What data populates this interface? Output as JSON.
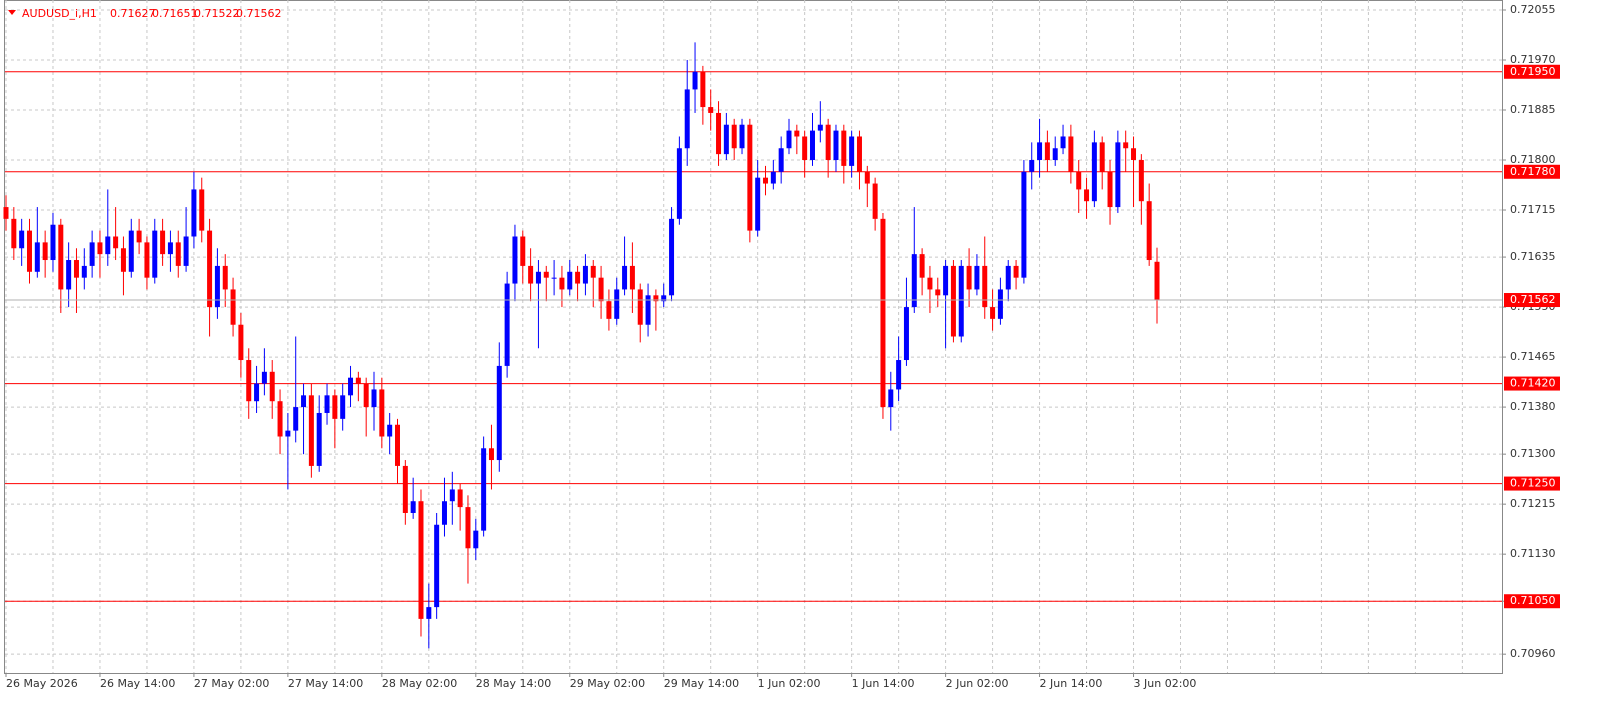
{
  "chart_data": {
    "type": "candlestick",
    "title": "AUDUSD_i,H1",
    "up_color": "#0000ff",
    "down_color": "#ff0000",
    "level_color": "#ff0000",
    "ylim": [
      0.70928,
      0.72072
    ],
    "yticks": [
      0.72055,
      {
        "value": 0.7197,
        "label": "0.71970"
      },
      0.71885,
      {
        "value": 0.718,
        "label": "0.71800"
      },
      0.71715,
      0.71635,
      {
        "value": 0.7155,
        "label": "0.71550"
      },
      0.71465,
      {
        "value": 0.7138,
        "label": "0.71380"
      },
      {
        "value": 0.713,
        "label": "0.71300"
      },
      0.71215,
      {
        "value": 0.7113,
        "label": "0.71130"
      },
      {
        "value": 0.7105,
        "label": "0.71050"
      },
      {
        "value": 0.7096,
        "label": "0.70960"
      }
    ],
    "levels": [
      {
        "value": 0.7195,
        "label": "0.71950"
      },
      {
        "value": 0.7178,
        "label": "0.71780"
      },
      {
        "value": 0.7142,
        "label": "0.71420"
      },
      {
        "value": 0.7125,
        "label": "0.71250"
      },
      {
        "value": 0.7105,
        "label": "0.71050"
      }
    ],
    "grid": true,
    "categories": [
      "26 May 2026",
      null,
      null,
      null,
      null,
      null,
      null,
      null,
      null,
      null,
      null,
      null,
      "26 May 14:00",
      null,
      null,
      null,
      null,
      null,
      null,
      null,
      null,
      null,
      null,
      null,
      "27 May 02:00",
      null,
      null,
      null,
      null,
      null,
      null,
      null,
      null,
      null,
      null,
      null,
      "27 May 14:00",
      null,
      null,
      null,
      null,
      null,
      null,
      null,
      null,
      null,
      null,
      null,
      "28 May 02:00",
      null,
      null,
      null,
      null,
      null,
      null,
      null,
      null,
      null,
      null,
      null,
      "28 May 14:00",
      null,
      null,
      null,
      null,
      null,
      null,
      null,
      null,
      null,
      null,
      null,
      "29 May 02:00",
      null,
      null,
      null,
      null,
      null,
      null,
      null,
      null,
      null,
      null,
      null,
      "29 May 14:00",
      null,
      null,
      null,
      null,
      null,
      null,
      null,
      null,
      null,
      null,
      null,
      "1 Jun 02:00",
      null,
      null,
      null,
      null,
      null,
      null,
      null,
      null,
      null,
      null,
      null,
      "1 Jun 14:00",
      null,
      null,
      null,
      null,
      null,
      null,
      null,
      null,
      null,
      null,
      null,
      "2 Jun 02:00",
      null,
      null,
      null,
      null,
      null,
      null,
      null,
      null,
      null,
      null,
      null,
      "2 Jun 14:00",
      null,
      null,
      null,
      null,
      null,
      null,
      null,
      null,
      null,
      null,
      null,
      "3 Jun 02:00",
      null,
      null,
      null
    ],
    "candles": [
      [
        0.7172,
        0.7174,
        0.7168,
        0.717
      ],
      [
        0.717,
        0.7172,
        0.7163,
        0.7165
      ],
      [
        0.7165,
        0.717,
        0.7162,
        0.7168
      ],
      [
        0.7168,
        0.717,
        0.7159,
        0.7161
      ],
      [
        0.7161,
        0.7172,
        0.716,
        0.7166
      ],
      [
        0.7166,
        0.7168,
        0.716,
        0.7163
      ],
      [
        0.7163,
        0.7171,
        0.7161,
        0.7169
      ],
      [
        0.7169,
        0.717,
        0.7154,
        0.7158
      ],
      [
        0.7158,
        0.7166,
        0.7155,
        0.7163
      ],
      [
        0.7163,
        0.7165,
        0.7154,
        0.716
      ],
      [
        0.716,
        0.7165,
        0.7158,
        0.7162
      ],
      [
        0.7162,
        0.7168,
        0.716,
        0.7166
      ],
      [
        0.7166,
        0.7168,
        0.716,
        0.7164
      ],
      [
        0.7164,
        0.7175,
        0.7162,
        0.7167
      ],
      [
        0.7167,
        0.7172,
        0.7163,
        0.7165
      ],
      [
        0.7165,
        0.7167,
        0.7157,
        0.7161
      ],
      [
        0.7161,
        0.717,
        0.716,
        0.7168
      ],
      [
        0.7168,
        0.717,
        0.7164,
        0.7166
      ],
      [
        0.7166,
        0.7167,
        0.7158,
        0.716
      ],
      [
        0.716,
        0.717,
        0.7159,
        0.7168
      ],
      [
        0.7168,
        0.717,
        0.7162,
        0.7164
      ],
      [
        0.7164,
        0.7168,
        0.7161,
        0.7166
      ],
      [
        0.7166,
        0.7168,
        0.716,
        0.7162
      ],
      [
        0.7162,
        0.7172,
        0.7161,
        0.7167
      ],
      [
        0.7167,
        0.7178,
        0.7165,
        0.7175
      ],
      [
        0.7175,
        0.7177,
        0.7166,
        0.7168
      ],
      [
        0.7168,
        0.717,
        0.715,
        0.7155
      ],
      [
        0.7155,
        0.7165,
        0.7153,
        0.7162
      ],
      [
        0.7162,
        0.7164,
        0.7155,
        0.7158
      ],
      [
        0.7158,
        0.716,
        0.715,
        0.7152
      ],
      [
        0.7152,
        0.7154,
        0.7143,
        0.7146
      ],
      [
        0.7146,
        0.7148,
        0.7136,
        0.7139
      ],
      [
        0.7139,
        0.7145,
        0.7137,
        0.7142
      ],
      [
        0.7142,
        0.7148,
        0.714,
        0.7144
      ],
      [
        0.7144,
        0.7146,
        0.7136,
        0.7139
      ],
      [
        0.7139,
        0.7141,
        0.713,
        0.7133
      ],
      [
        0.7133,
        0.7137,
        0.7124,
        0.7134
      ],
      [
        0.7134,
        0.715,
        0.7132,
        0.7138
      ],
      [
        0.7138,
        0.7142,
        0.713,
        0.714
      ],
      [
        0.714,
        0.7142,
        0.7126,
        0.7128
      ],
      [
        0.7128,
        0.714,
        0.7127,
        0.7137
      ],
      [
        0.7137,
        0.7142,
        0.7135,
        0.714
      ],
      [
        0.714,
        0.7141,
        0.7131,
        0.7136
      ],
      [
        0.7136,
        0.7142,
        0.7134,
        0.714
      ],
      [
        0.714,
        0.7145,
        0.7138,
        0.7143
      ],
      [
        0.7143,
        0.7144,
        0.7139,
        0.7142
      ],
      [
        0.7142,
        0.7143,
        0.7133,
        0.7138
      ],
      [
        0.7138,
        0.7144,
        0.7134,
        0.7141
      ],
      [
        0.7141,
        0.7143,
        0.7131,
        0.7133
      ],
      [
        0.7133,
        0.7137,
        0.713,
        0.7135
      ],
      [
        0.7135,
        0.7136,
        0.7125,
        0.7128
      ],
      [
        0.7128,
        0.7129,
        0.7118,
        0.712
      ],
      [
        0.712,
        0.7126,
        0.7119,
        0.7122
      ],
      [
        0.7122,
        0.7124,
        0.7099,
        0.7102
      ],
      [
        0.7102,
        0.7108,
        0.7097,
        0.7104
      ],
      [
        0.7104,
        0.712,
        0.7102,
        0.7118
      ],
      [
        0.7118,
        0.7126,
        0.7116,
        0.7122
      ],
      [
        0.7122,
        0.7127,
        0.7118,
        0.7124
      ],
      [
        0.7124,
        0.7125,
        0.7117,
        0.7121
      ],
      [
        0.7121,
        0.7123,
        0.7108,
        0.7114
      ],
      [
        0.7114,
        0.7119,
        0.7112,
        0.7117
      ],
      [
        0.7117,
        0.7133,
        0.7116,
        0.7131
      ],
      [
        0.7131,
        0.7135,
        0.7124,
        0.7129
      ],
      [
        0.7129,
        0.7149,
        0.7127,
        0.7145
      ],
      [
        0.7145,
        0.7161,
        0.7143,
        0.7159
      ],
      [
        0.7159,
        0.7169,
        0.7156,
        0.7167
      ],
      [
        0.7167,
        0.7168,
        0.7159,
        0.7162
      ],
      [
        0.7162,
        0.7165,
        0.7156,
        0.7159
      ],
      [
        0.7159,
        0.7163,
        0.7148,
        0.7161
      ],
      [
        0.7161,
        0.7162,
        0.7156,
        0.716
      ],
      [
        0.716,
        0.7163,
        0.7157,
        0.716
      ],
      [
        0.716,
        0.7162,
        0.7155,
        0.7158
      ],
      [
        0.7158,
        0.7163,
        0.7157,
        0.7161
      ],
      [
        0.7161,
        0.7162,
        0.7156,
        0.7159
      ],
      [
        0.7159,
        0.7164,
        0.7157,
        0.7162
      ],
      [
        0.7162,
        0.7163,
        0.7155,
        0.716
      ],
      [
        0.716,
        0.7162,
        0.7153,
        0.7156
      ],
      [
        0.7156,
        0.7158,
        0.7151,
        0.7153
      ],
      [
        0.7153,
        0.716,
        0.7152,
        0.7158
      ],
      [
        0.7158,
        0.7167,
        0.7157,
        0.7162
      ],
      [
        0.7162,
        0.7166,
        0.7154,
        0.7158
      ],
      [
        0.7158,
        0.7159,
        0.7149,
        0.7152
      ],
      [
        0.7152,
        0.7159,
        0.715,
        0.7157
      ],
      [
        0.7157,
        0.7158,
        0.7151,
        0.7156
      ],
      [
        0.7156,
        0.7159,
        0.7155,
        0.7157
      ],
      [
        0.7157,
        0.7172,
        0.7156,
        0.717
      ],
      [
        0.717,
        0.7184,
        0.7169,
        0.7182
      ],
      [
        0.7182,
        0.7197,
        0.7179,
        0.7192
      ],
      [
        0.7192,
        0.72,
        0.7188,
        0.7195
      ],
      [
        0.7195,
        0.7196,
        0.7186,
        0.7189
      ],
      [
        0.7189,
        0.7192,
        0.7185,
        0.7188
      ],
      [
        0.7188,
        0.719,
        0.7179,
        0.7181
      ],
      [
        0.7181,
        0.7188,
        0.718,
        0.7186
      ],
      [
        0.7186,
        0.7187,
        0.718,
        0.7182
      ],
      [
        0.7182,
        0.7187,
        0.7181,
        0.7186
      ],
      [
        0.7186,
        0.7187,
        0.7166,
        0.7168
      ],
      [
        0.7168,
        0.718,
        0.7167,
        0.7177
      ],
      [
        0.7177,
        0.7179,
        0.7174,
        0.7176
      ],
      [
        0.7176,
        0.718,
        0.7175,
        0.7178
      ],
      [
        0.7178,
        0.7184,
        0.7176,
        0.7182
      ],
      [
        0.7182,
        0.7187,
        0.7181,
        0.7185
      ],
      [
        0.7185,
        0.7186,
        0.7181,
        0.7184
      ],
      [
        0.7184,
        0.7185,
        0.7177,
        0.718
      ],
      [
        0.718,
        0.7188,
        0.7179,
        0.7185
      ],
      [
        0.7185,
        0.719,
        0.7183,
        0.7186
      ],
      [
        0.7186,
        0.7187,
        0.7177,
        0.718
      ],
      [
        0.718,
        0.7186,
        0.7178,
        0.7185
      ],
      [
        0.7185,
        0.7186,
        0.7176,
        0.7179
      ],
      [
        0.7179,
        0.7185,
        0.7177,
        0.7184
      ],
      [
        0.7184,
        0.7185,
        0.7175,
        0.7178
      ],
      [
        0.7178,
        0.7179,
        0.7172,
        0.7176
      ],
      [
        0.7176,
        0.7177,
        0.7168,
        0.717
      ],
      [
        0.717,
        0.7171,
        0.7136,
        0.7138
      ],
      [
        0.7138,
        0.7144,
        0.7134,
        0.7141
      ],
      [
        0.7141,
        0.715,
        0.7139,
        0.7146
      ],
      [
        0.7146,
        0.716,
        0.7145,
        0.7155
      ],
      [
        0.7155,
        0.7172,
        0.7154,
        0.7164
      ],
      [
        0.7164,
        0.7165,
        0.7157,
        0.716
      ],
      [
        0.716,
        0.7162,
        0.7154,
        0.7158
      ],
      [
        0.7158,
        0.716,
        0.7155,
        0.7157
      ],
      [
        0.7157,
        0.7163,
        0.7148,
        0.7162
      ],
      [
        0.7162,
        0.7163,
        0.7149,
        0.715
      ],
      [
        0.715,
        0.7163,
        0.7149,
        0.7162
      ],
      [
        0.7162,
        0.7165,
        0.7155,
        0.7158
      ],
      [
        0.7158,
        0.7164,
        0.7157,
        0.7162
      ],
      [
        0.7162,
        0.7167,
        0.7153,
        0.7155
      ],
      [
        0.7155,
        0.7158,
        0.7151,
        0.7153
      ],
      [
        0.7153,
        0.716,
        0.7152,
        0.7158
      ],
      [
        0.7158,
        0.7163,
        0.7156,
        0.7162
      ],
      [
        0.7162,
        0.7163,
        0.7158,
        0.716
      ],
      [
        0.716,
        0.718,
        0.7159,
        0.7178
      ],
      [
        0.7178,
        0.7183,
        0.7175,
        0.718
      ],
      [
        0.718,
        0.7187,
        0.7177,
        0.7183
      ],
      [
        0.7183,
        0.7185,
        0.7178,
        0.718
      ],
      [
        0.718,
        0.7184,
        0.7179,
        0.7182
      ],
      [
        0.7182,
        0.7186,
        0.7181,
        0.7184
      ],
      [
        0.7184,
        0.7186,
        0.7176,
        0.7178
      ],
      [
        0.7178,
        0.718,
        0.7171,
        0.7175
      ],
      [
        0.7175,
        0.7177,
        0.717,
        0.7173
      ],
      [
        0.7173,
        0.7185,
        0.7172,
        0.7183
      ],
      [
        0.7183,
        0.7184,
        0.7175,
        0.7178
      ],
      [
        0.7178,
        0.718,
        0.7169,
        0.7172
      ],
      [
        0.7172,
        0.7185,
        0.7171,
        0.7183
      ],
      [
        0.7183,
        0.7185,
        0.7178,
        0.7182
      ],
      [
        0.7182,
        0.7184,
        0.7172,
        0.718
      ],
      [
        0.718,
        0.7181,
        0.7169,
        0.7173
      ],
      [
        0.7173,
        0.7176,
        0.7162,
        0.7163
      ],
      [
        0.71627,
        0.71651,
        0.71522,
        0.71562
      ]
    ]
  }
}
